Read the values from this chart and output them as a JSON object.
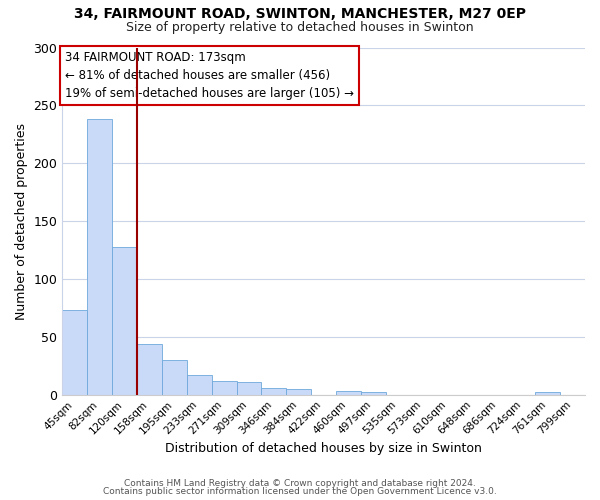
{
  "title1": "34, FAIRMOUNT ROAD, SWINTON, MANCHESTER, M27 0EP",
  "title2": "Size of property relative to detached houses in Swinton",
  "xlabel": "Distribution of detached houses by size in Swinton",
  "ylabel": "Number of detached properties",
  "bar_labels": [
    "45sqm",
    "82sqm",
    "120sqm",
    "158sqm",
    "195sqm",
    "233sqm",
    "271sqm",
    "309sqm",
    "346sqm",
    "384sqm",
    "422sqm",
    "460sqm",
    "497sqm",
    "535sqm",
    "573sqm",
    "610sqm",
    "648sqm",
    "686sqm",
    "724sqm",
    "761sqm",
    "799sqm"
  ],
  "bar_values": [
    73,
    238,
    128,
    44,
    30,
    17,
    12,
    11,
    6,
    5,
    0,
    3,
    2,
    0,
    0,
    0,
    0,
    0,
    0,
    2,
    0
  ],
  "bar_color": "#c9daf8",
  "bar_edge_color": "#6fa8dc",
  "vline_x": 2.5,
  "vline_color": "#990000",
  "ylim": [
    0,
    300
  ],
  "yticks": [
    0,
    50,
    100,
    150,
    200,
    250,
    300
  ],
  "annotation_title": "34 FAIRMOUNT ROAD: 173sqm",
  "annotation_line1": "← 81% of detached houses are smaller (456)",
  "annotation_line2": "19% of semi-detached houses are larger (105) →",
  "footer1": "Contains HM Land Registry data © Crown copyright and database right 2024.",
  "footer2": "Contains public sector information licensed under the Open Government Licence v3.0.",
  "background_color": "#ffffff",
  "grid_color": "#c9d4e8"
}
